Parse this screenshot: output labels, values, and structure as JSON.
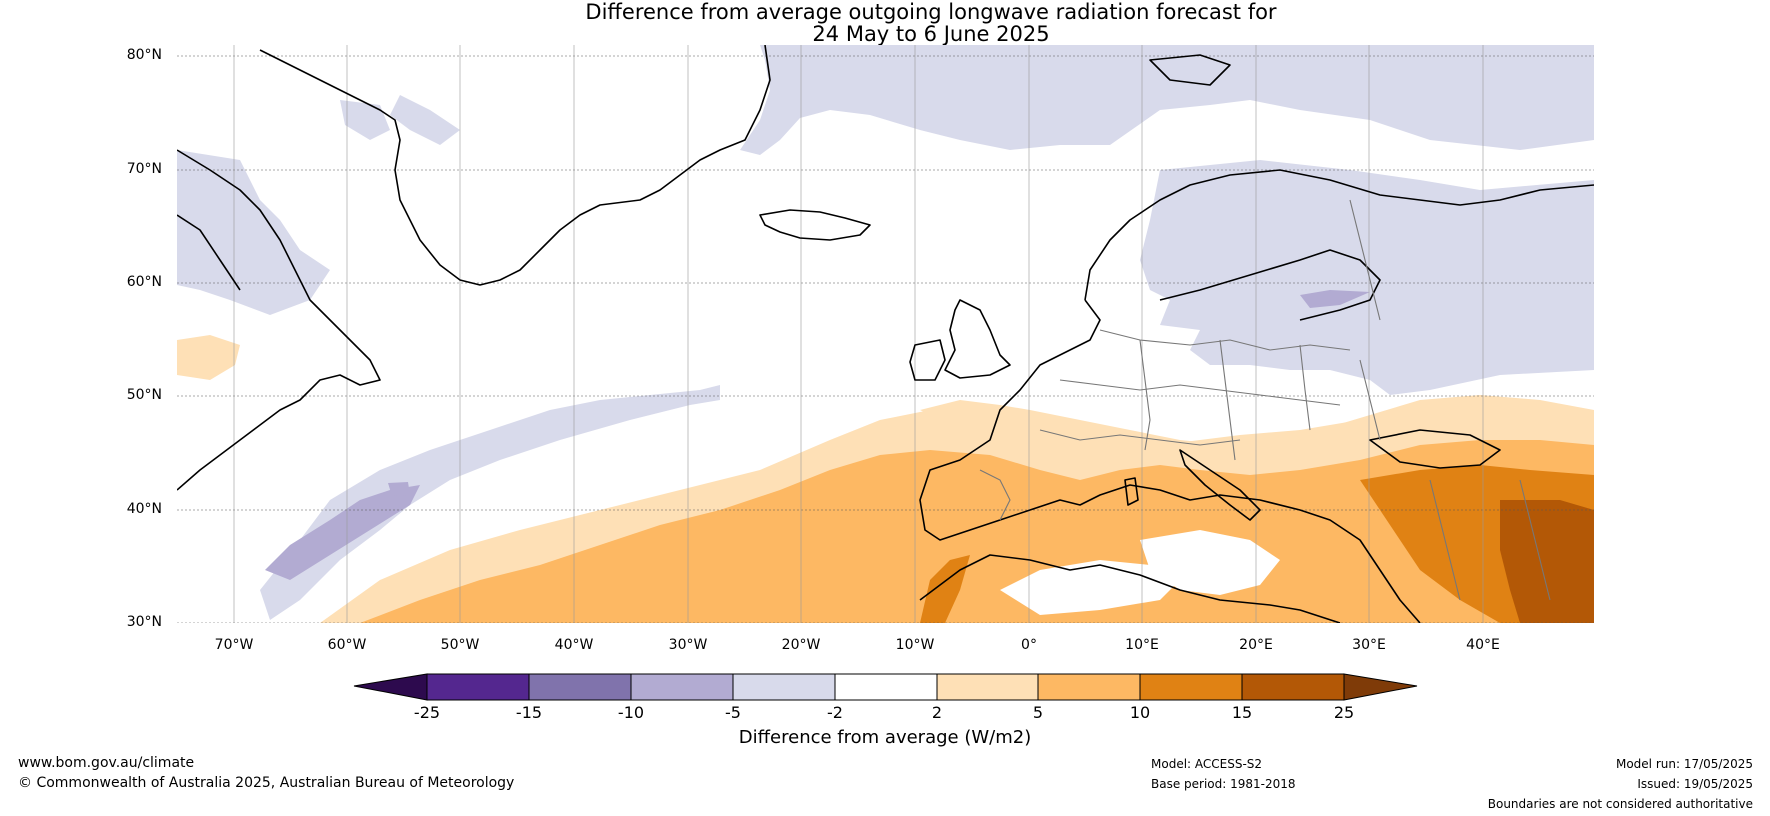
{
  "title": {
    "line1": "Difference from average outgoing longwave radiation forecast for",
    "line2": "24 May to 6 June 2025"
  },
  "map": {
    "lat_labels": [
      "80°N",
      "70°N",
      "60°N",
      "50°N",
      "40°N",
      "30°N"
    ],
    "lon_labels": [
      "70°W",
      "60°W",
      "50°W",
      "40°W",
      "30°W",
      "20°W",
      "10°W",
      "0°",
      "10°E",
      "20°E",
      "30°E",
      "40°E"
    ],
    "extent": {
      "lon": [
        -75,
        50
      ],
      "lat": [
        30,
        81
      ]
    }
  },
  "colorbar": {
    "title": "Difference from average (W/m2)",
    "ticks": [
      "-25",
      "-15",
      "-10",
      "-5",
      "-2",
      "2",
      "5",
      "10",
      "15",
      "25"
    ],
    "colors": [
      "#2d0a4e",
      "#54278f",
      "#8073ac",
      "#b2abd2",
      "#d8daeb",
      "#ffffff",
      "#fee0b6",
      "#fdb863",
      "#e08214",
      "#b35806",
      "#7f3b08"
    ]
  },
  "footer": {
    "website": "www.bom.gov.au/climate",
    "copyright": "© Commonwealth of Australia 2025, Australian Bureau of Meteorology",
    "model": "Model: ACCESS-S2",
    "base_period": "Base period: 1981-2018",
    "model_run": "Model run: 17/05/2025",
    "issued": "Issued: 19/05/2025",
    "boundaries": "Boundaries are not considered authoritative"
  }
}
